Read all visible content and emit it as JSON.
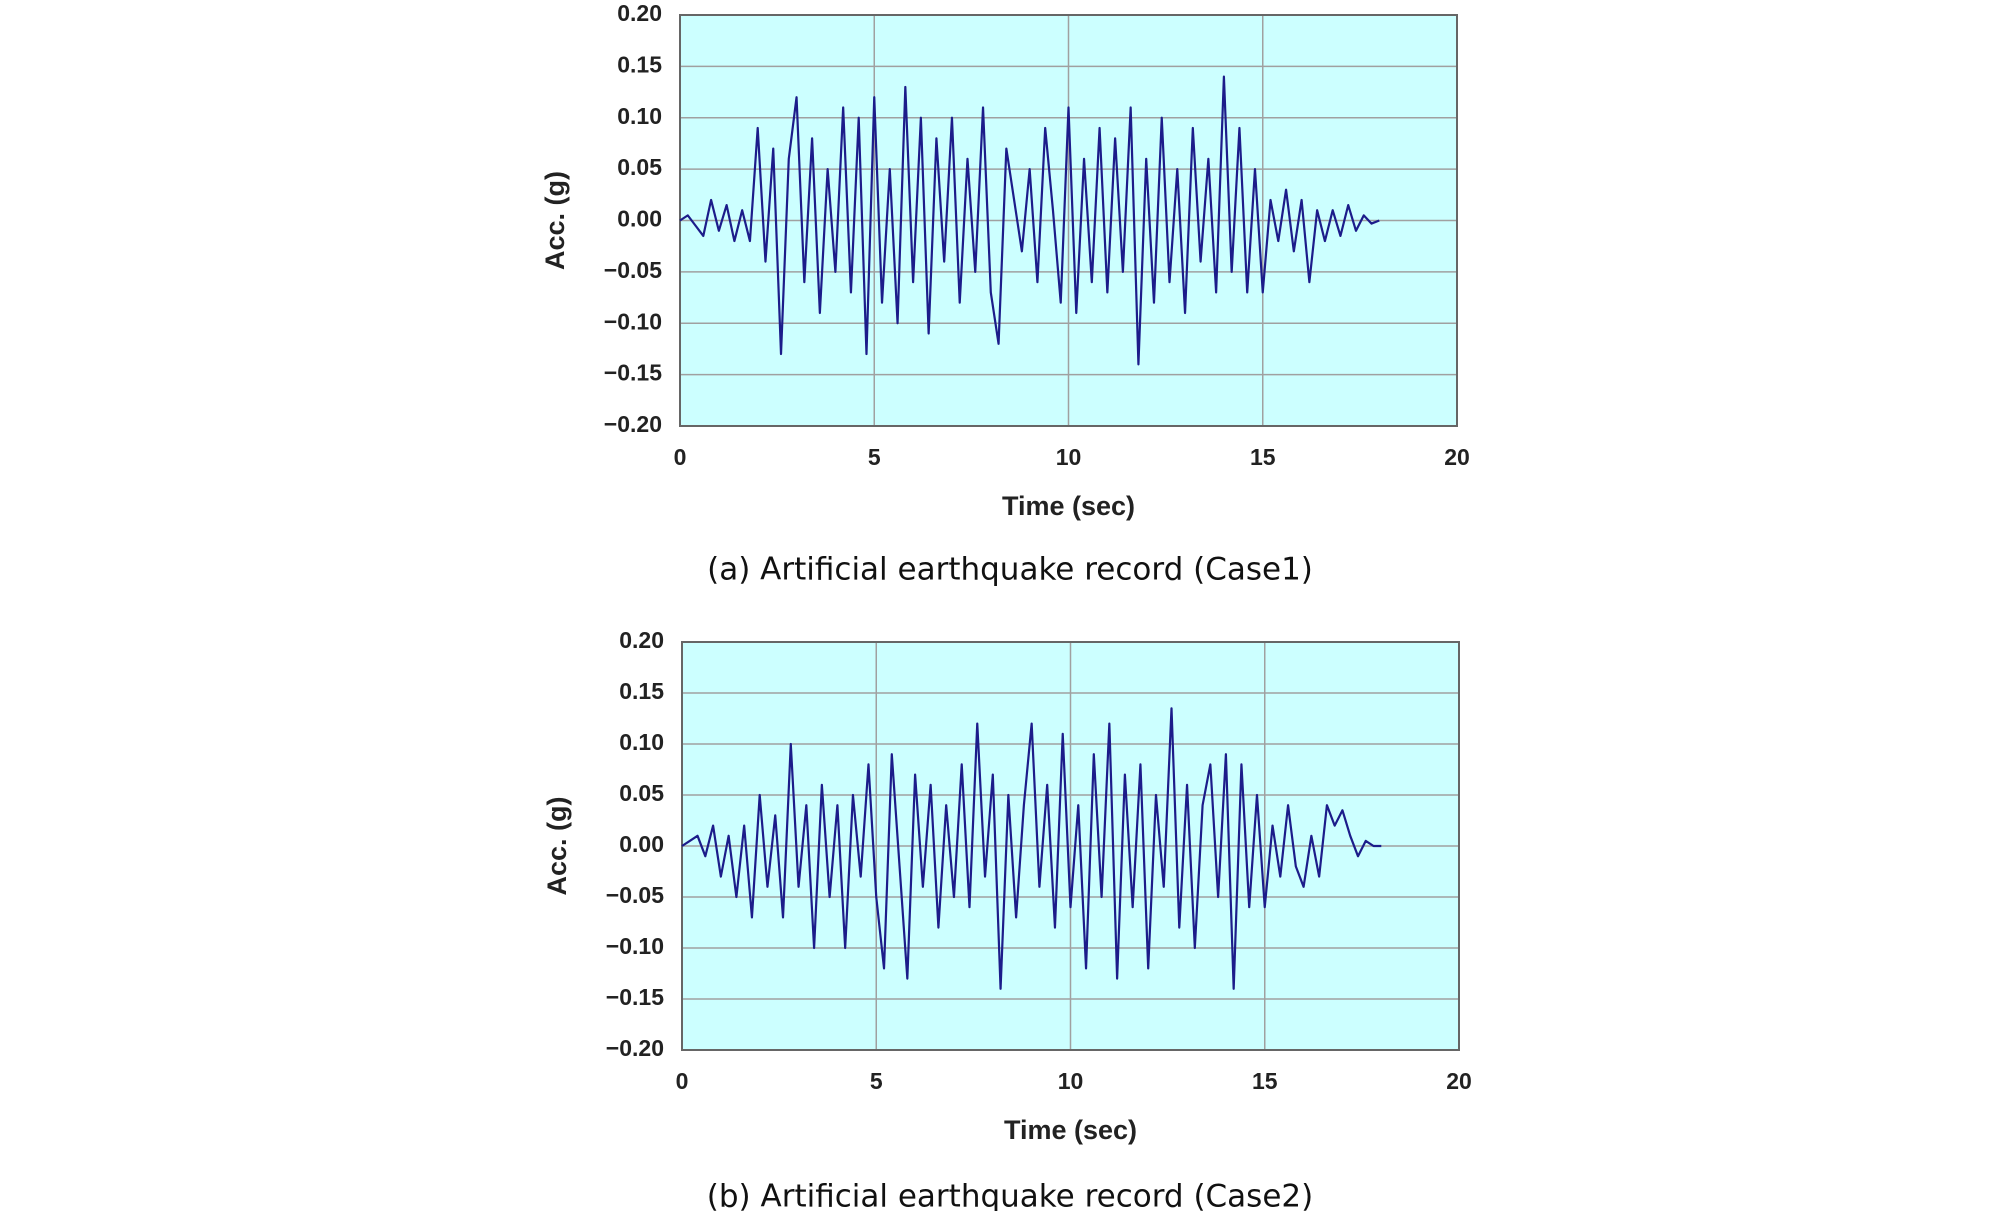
{
  "chart_data": [
    {
      "type": "line",
      "caption": "(a) Artificial earthquake record (Case1)",
      "xlabel": "Time (sec)",
      "ylabel": "Acc. (g)",
      "xlim": [
        0,
        20
      ],
      "xticks": [
        0,
        5,
        10,
        15,
        20
      ],
      "ylim": [
        -0.2,
        0.2
      ],
      "yticks": [
        {
          "value": -0.2,
          "label": "−0.20"
        },
        {
          "value": -0.15,
          "label": "−0.15"
        },
        {
          "value": -0.1,
          "label": "−0.10"
        },
        {
          "value": -0.05,
          "label": "−0.05"
        },
        {
          "value": 0,
          "label": "0.00"
        },
        {
          "value": 0.05,
          "label": "0.05"
        },
        {
          "value": 0.1,
          "label": "0.10"
        },
        {
          "value": 0.15,
          "label": "0.15"
        },
        {
          "value": 0.2,
          "label": "0.20"
        }
      ],
      "grid": true,
      "background": "#ccffff",
      "x": [
        0,
        0.2,
        0.4,
        0.6,
        0.8,
        1,
        1.2,
        1.4,
        1.6,
        1.8,
        2,
        2.2,
        2.4,
        2.6,
        2.8,
        3,
        3.2,
        3.4,
        3.6,
        3.8,
        4,
        4.2,
        4.4,
        4.6,
        4.8,
        5,
        5.2,
        5.4,
        5.6,
        5.8,
        6,
        6.2,
        6.4,
        6.6,
        6.8,
        7,
        7.2,
        7.4,
        7.6,
        7.8,
        8,
        8.2,
        8.4,
        8.6,
        8.8,
        9,
        9.2,
        9.4,
        9.6,
        9.8,
        10,
        10.2,
        10.4,
        10.6,
        10.8,
        11,
        11.2,
        11.4,
        11.6,
        11.8,
        12,
        12.2,
        12.4,
        12.6,
        12.8,
        13,
        13.2,
        13.4,
        13.6,
        13.8,
        14,
        14.2,
        14.4,
        14.6,
        14.8,
        15,
        15.2,
        15.4,
        15.6,
        15.8,
        16,
        16.2,
        16.4,
        16.6,
        16.8,
        17,
        17.2,
        17.4,
        17.6,
        17.8,
        18
      ],
      "series": [
        {
          "color": "#1c1c8a",
          "values": [
            0,
            0.005,
            -0.005,
            -0.015,
            0.02,
            -0.01,
            0.015,
            -0.02,
            0.01,
            -0.02,
            0.09,
            -0.04,
            0.07,
            -0.13,
            0.06,
            0.12,
            -0.06,
            0.08,
            -0.09,
            0.05,
            -0.05,
            0.11,
            -0.07,
            0.1,
            -0.13,
            0.12,
            -0.08,
            0.05,
            -0.1,
            0.13,
            -0.06,
            0.1,
            -0.11,
            0.08,
            -0.04,
            0.1,
            -0.08,
            0.06,
            -0.05,
            0.11,
            -0.07,
            -0.12,
            0.07,
            0.02,
            -0.03,
            0.05,
            -0.06,
            0.09,
            0.01,
            -0.08,
            0.11,
            -0.09,
            0.06,
            -0.06,
            0.09,
            -0.07,
            0.08,
            -0.05,
            0.11,
            -0.14,
            0.06,
            -0.08,
            0.1,
            -0.06,
            0.05,
            -0.09,
            0.09,
            -0.04,
            0.06,
            -0.07,
            0.14,
            -0.05,
            0.09,
            -0.07,
            0.05,
            -0.07,
            0.02,
            -0.02,
            0.03,
            -0.03,
            0.02,
            -0.06,
            0.01,
            -0.02,
            0.01,
            -0.015,
            0.015,
            -0.01,
            0.005,
            -0.003,
            0
          ]
        }
      ]
    },
    {
      "type": "line",
      "caption": "(b) Artificial earthquake record (Case2)",
      "xlabel": "Time (sec)",
      "ylabel": "Acc. (g)",
      "xlim": [
        0,
        20
      ],
      "xticks": [
        0,
        5,
        10,
        15,
        20
      ],
      "ylim": [
        -0.2,
        0.2
      ],
      "yticks": [
        {
          "value": -0.2,
          "label": "−0.20"
        },
        {
          "value": -0.15,
          "label": "−0.15"
        },
        {
          "value": -0.1,
          "label": "−0.10"
        },
        {
          "value": -0.05,
          "label": "−0.05"
        },
        {
          "value": 0,
          "label": "0.00"
        },
        {
          "value": 0.05,
          "label": "0.05"
        },
        {
          "value": 0.1,
          "label": "0.10"
        },
        {
          "value": 0.15,
          "label": "0.15"
        },
        {
          "value": 0.2,
          "label": "0.20"
        }
      ],
      "grid": true,
      "background": "#ccffff",
      "x": [
        0,
        0.2,
        0.4,
        0.6,
        0.8,
        1,
        1.2,
        1.4,
        1.6,
        1.8,
        2,
        2.2,
        2.4,
        2.6,
        2.8,
        3,
        3.2,
        3.4,
        3.6,
        3.8,
        4,
        4.2,
        4.4,
        4.6,
        4.8,
        5,
        5.2,
        5.4,
        5.6,
        5.8,
        6,
        6.2,
        6.4,
        6.6,
        6.8,
        7,
        7.2,
        7.4,
        7.6,
        7.8,
        8,
        8.2,
        8.4,
        8.6,
        8.8,
        9,
        9.2,
        9.4,
        9.6,
        9.8,
        10,
        10.2,
        10.4,
        10.6,
        10.8,
        11,
        11.2,
        11.4,
        11.6,
        11.8,
        12,
        12.2,
        12.4,
        12.6,
        12.8,
        13,
        13.2,
        13.4,
        13.6,
        13.8,
        14,
        14.2,
        14.4,
        14.6,
        14.8,
        15,
        15.2,
        15.4,
        15.6,
        15.8,
        16,
        16.2,
        16.4,
        16.6,
        16.8,
        17,
        17.2,
        17.4,
        17.6,
        17.8,
        18
      ],
      "series": [
        {
          "color": "#1c1c8a",
          "values": [
            0,
            0.005,
            0.01,
            -0.01,
            0.02,
            -0.03,
            0.01,
            -0.05,
            0.02,
            -0.07,
            0.05,
            -0.04,
            0.03,
            -0.07,
            0.1,
            -0.04,
            0.04,
            -0.1,
            0.06,
            -0.05,
            0.04,
            -0.1,
            0.05,
            -0.03,
            0.08,
            -0.05,
            -0.12,
            0.09,
            -0.02,
            -0.13,
            0.07,
            -0.04,
            0.06,
            -0.08,
            0.04,
            -0.05,
            0.08,
            -0.06,
            0.12,
            -0.03,
            0.07,
            -0.14,
            0.05,
            -0.07,
            0.04,
            0.12,
            -0.04,
            0.06,
            -0.08,
            0.11,
            -0.06,
            0.04,
            -0.12,
            0.09,
            -0.05,
            0.12,
            -0.13,
            0.07,
            -0.06,
            0.08,
            -0.12,
            0.05,
            -0.04,
            0.135,
            -0.08,
            0.06,
            -0.1,
            0.04,
            0.08,
            -0.05,
            0.09,
            -0.14,
            0.08,
            -0.06,
            0.05,
            -0.06,
            0.02,
            -0.03,
            0.04,
            -0.02,
            -0.04,
            0.01,
            -0.03,
            0.04,
            0.02,
            0.035,
            0.01,
            -0.01,
            0.005,
            0,
            0
          ]
        }
      ]
    }
  ]
}
